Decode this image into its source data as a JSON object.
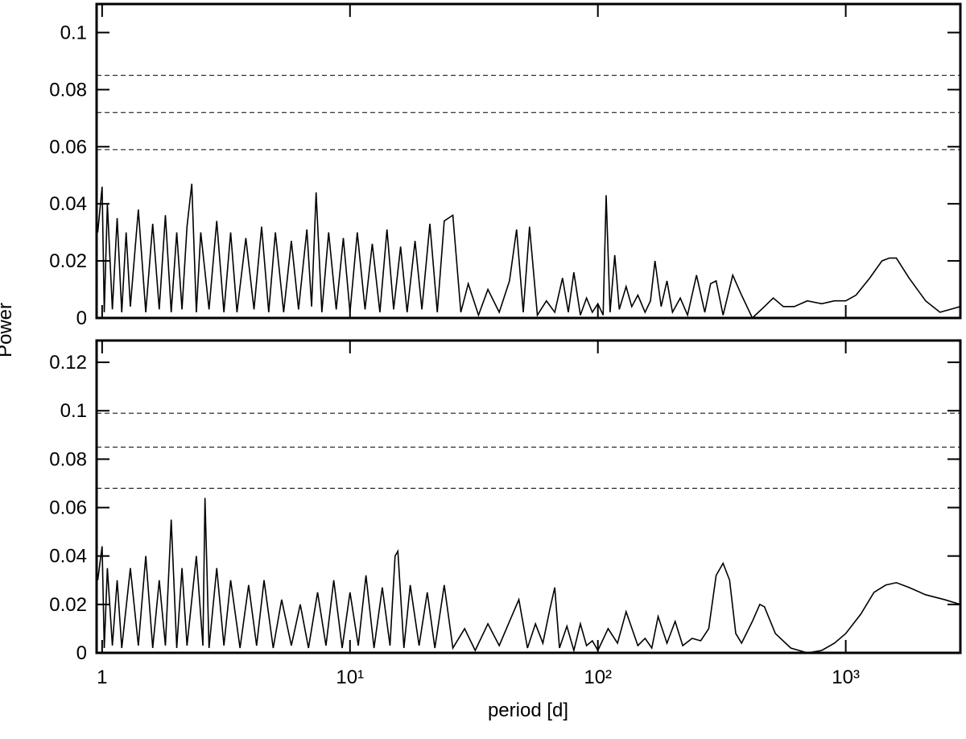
{
  "chart_data": [
    {
      "type": "line",
      "ylabel": "Power",
      "xscale": "log",
      "color": "#000000",
      "xlim": [
        0.95,
        2900
      ],
      "ylim": [
        0,
        0.11
      ],
      "yticks": [
        0,
        0.02,
        0.04,
        0.06,
        0.08,
        0.1
      ],
      "threshold_lines": [
        0.085,
        0.072,
        0.059
      ],
      "x": [
        0.96,
        1.0,
        1.02,
        1.05,
        1.1,
        1.15,
        1.2,
        1.25,
        1.3,
        1.4,
        1.5,
        1.6,
        1.7,
        1.8,
        1.9,
        2.0,
        2.1,
        2.2,
        2.3,
        2.4,
        2.5,
        2.7,
        2.9,
        3.1,
        3.3,
        3.5,
        3.8,
        4.1,
        4.4,
        4.7,
        5.0,
        5.4,
        5.8,
        6.2,
        6.7,
        7.0,
        7.3,
        7.7,
        8.2,
        8.8,
        9.4,
        10,
        10.7,
        11.5,
        12.3,
        13.2,
        14.1,
        15,
        16,
        17,
        18.3,
        19.5,
        21,
        22.5,
        24,
        26,
        28,
        30,
        33,
        36,
        40,
        44,
        47,
        50,
        53,
        57,
        62,
        67,
        72,
        76,
        80,
        85,
        90,
        95,
        100,
        105,
        108,
        112,
        117,
        122,
        130,
        137,
        145,
        155,
        163,
        170,
        180,
        190,
        200,
        215,
        230,
        250,
        270,
        285,
        300,
        320,
        350,
        380,
        420,
        470,
        510,
        560,
        620,
        700,
        800,
        900,
        1000,
        1100,
        1250,
        1400,
        1500,
        1600,
        1800,
        2100,
        2400,
        2900
      ],
      "values": [
        0.03,
        0.046,
        0.002,
        0.04,
        0.003,
        0.035,
        0.002,
        0.03,
        0.004,
        0.038,
        0.002,
        0.033,
        0.003,
        0.036,
        0.002,
        0.03,
        0.003,
        0.032,
        0.047,
        0.002,
        0.03,
        0.003,
        0.034,
        0.002,
        0.03,
        0.002,
        0.028,
        0.003,
        0.032,
        0.002,
        0.03,
        0.002,
        0.027,
        0.003,
        0.031,
        0.004,
        0.044,
        0.002,
        0.03,
        0.003,
        0.028,
        0.002,
        0.03,
        0.003,
        0.026,
        0.002,
        0.031,
        0.003,
        0.025,
        0.002,
        0.027,
        0.003,
        0.033,
        0.002,
        0.034,
        0.036,
        0.002,
        0.012,
        0.001,
        0.01,
        0.002,
        0.013,
        0.031,
        0.002,
        0.032,
        0.001,
        0.006,
        0.002,
        0.014,
        0.002,
        0.016,
        0.001,
        0.007,
        0.002,
        0.005,
        0.001,
        0.043,
        0.002,
        0.022,
        0.003,
        0.011,
        0.004,
        0.008,
        0.002,
        0.006,
        0.02,
        0.004,
        0.013,
        0.002,
        0.007,
        0.001,
        0.015,
        0.002,
        0.012,
        0.013,
        0.001,
        0.015,
        0.008,
        0.0,
        0.004,
        0.007,
        0.004,
        0.004,
        0.006,
        0.005,
        0.006,
        0.006,
        0.008,
        0.014,
        0.02,
        0.021,
        0.021,
        0.014,
        0.006,
        0.002,
        0.004
      ]
    },
    {
      "type": "line",
      "xlabel": "period [d]",
      "xscale": "log",
      "color": "#000000",
      "xlim": [
        0.95,
        2900
      ],
      "ylim": [
        0,
        0.129
      ],
      "yticks": [
        0,
        0.02,
        0.04,
        0.06,
        0.08,
        0.1,
        0.12
      ],
      "xticks": [
        1,
        {
          "value": 10,
          "label": "10¹"
        },
        {
          "value": 100,
          "label": "10²"
        },
        {
          "value": 1000,
          "label": "10³"
        }
      ],
      "threshold_lines": [
        0.099,
        0.085,
        0.068
      ],
      "x": [
        0.96,
        1.0,
        1.02,
        1.05,
        1.1,
        1.15,
        1.2,
        1.3,
        1.4,
        1.5,
        1.6,
        1.7,
        1.8,
        1.9,
        2.0,
        2.1,
        2.2,
        2.4,
        2.55,
        2.6,
        2.7,
        2.9,
        3.1,
        3.3,
        3.6,
        3.9,
        4.2,
        4.5,
        4.9,
        5.3,
        5.8,
        6.3,
        6.8,
        7.4,
        8.0,
        8.6,
        9.3,
        10,
        10.8,
        11.6,
        12.5,
        13.5,
        14.5,
        15.2,
        15.6,
        16.5,
        17.5,
        19,
        20.5,
        22,
        24,
        26,
        29,
        32,
        36,
        40,
        44,
        48,
        52,
        56,
        60,
        64,
        67,
        70,
        75,
        80,
        85,
        90,
        95,
        100,
        110,
        120,
        130,
        145,
        155,
        165,
        175,
        190,
        205,
        220,
        240,
        260,
        280,
        300,
        320,
        340,
        360,
        380,
        420,
        450,
        470,
        520,
        600,
        700,
        800,
        900,
        1000,
        1150,
        1300,
        1450,
        1600,
        1800,
        2100,
        2500,
        2900
      ],
      "values": [
        0.03,
        0.044,
        0.002,
        0.035,
        0.003,
        0.03,
        0.002,
        0.035,
        0.003,
        0.04,
        0.002,
        0.03,
        0.003,
        0.055,
        0.002,
        0.035,
        0.003,
        0.04,
        0.003,
        0.064,
        0.002,
        0.035,
        0.003,
        0.03,
        0.002,
        0.028,
        0.003,
        0.03,
        0.002,
        0.022,
        0.003,
        0.02,
        0.002,
        0.025,
        0.003,
        0.03,
        0.002,
        0.025,
        0.003,
        0.032,
        0.002,
        0.027,
        0.003,
        0.04,
        0.042,
        0.002,
        0.028,
        0.003,
        0.025,
        0.002,
        0.028,
        0.002,
        0.01,
        0.001,
        0.012,
        0.003,
        0.013,
        0.022,
        0.002,
        0.012,
        0.004,
        0.018,
        0.027,
        0.002,
        0.011,
        0.001,
        0.012,
        0.003,
        0.005,
        0.001,
        0.01,
        0.004,
        0.017,
        0.003,
        0.006,
        0.002,
        0.015,
        0.004,
        0.013,
        0.003,
        0.006,
        0.005,
        0.01,
        0.032,
        0.037,
        0.03,
        0.008,
        0.004,
        0.013,
        0.02,
        0.019,
        0.008,
        0.002,
        0.0,
        0.001,
        0.004,
        0.008,
        0.016,
        0.025,
        0.028,
        0.029,
        0.027,
        0.024,
        0.022,
        0.02
      ]
    }
  ]
}
